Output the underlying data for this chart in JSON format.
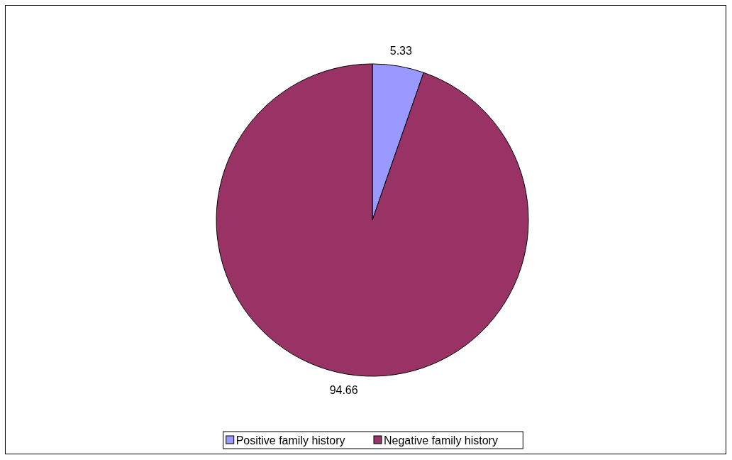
{
  "chart_data": {
    "type": "pie",
    "categories": [
      "Positive family history",
      "Negative family history"
    ],
    "values": [
      5.33,
      94.66
    ],
    "colors": [
      "#9999ff",
      "#993366"
    ],
    "data_labels": true,
    "legend": "bottom"
  }
}
